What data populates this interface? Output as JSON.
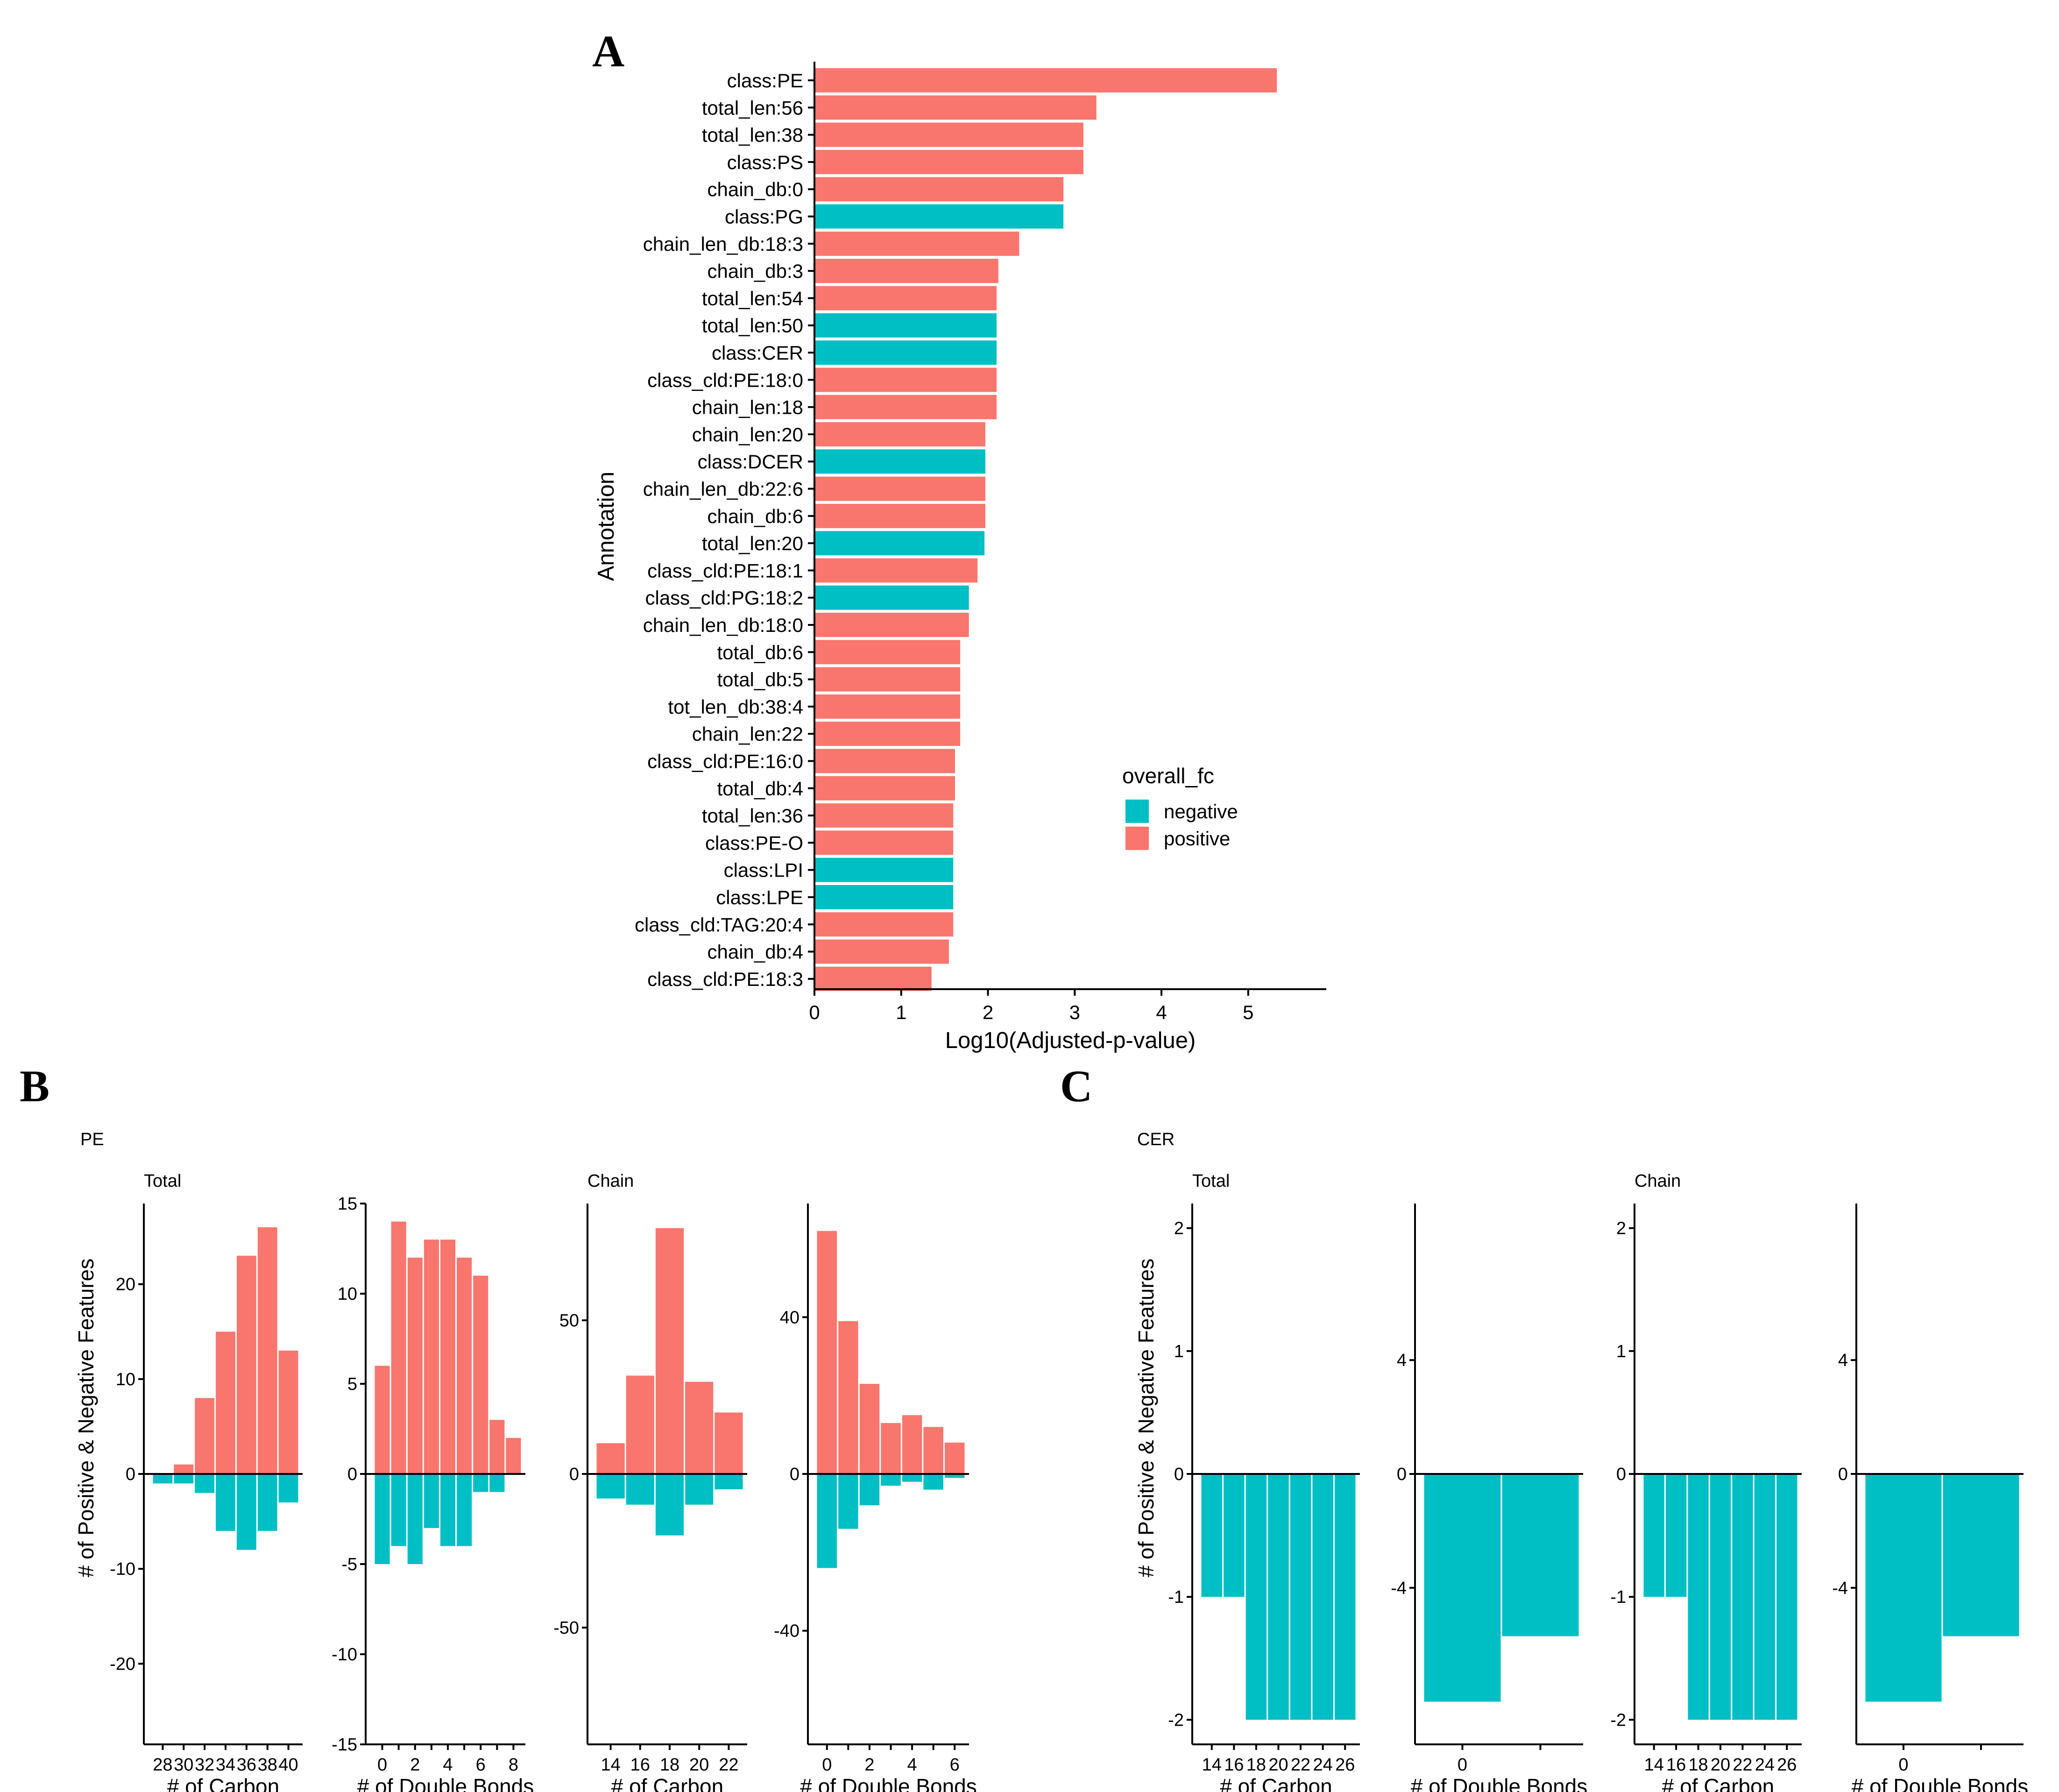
{
  "colors": {
    "positive": "#F8766D",
    "negative": "#00BFC4",
    "axis": "#000000"
  },
  "panels": {
    "a": "A",
    "b": "B",
    "c": "C"
  },
  "chart_data": [
    {
      "id": "A",
      "type": "bar",
      "orientation": "horizontal",
      "xlabel": "Log10(Adjusted-p-value)",
      "ylabel": "Annotation",
      "xlim": [
        0,
        5.9
      ],
      "xticks": [
        0,
        1,
        2,
        3,
        4,
        5
      ],
      "legend": {
        "title": "overall_fc",
        "entries": [
          "negative",
          "positive"
        ],
        "position": "right"
      },
      "categories": [
        "class:PE",
        "total_len:56",
        "total_len:38",
        "class:PS",
        "chain_db:0",
        "class:PG",
        "chain_len_db:18:3",
        "chain_db:3",
        "total_len:54",
        "total_len:50",
        "class:CER",
        "class_cld:PE:18:0",
        "chain_len:18",
        "chain_len:20",
        "class:DCER",
        "chain_len_db:22:6",
        "chain_db:6",
        "total_len:20",
        "class_cld:PE:18:1",
        "class_cld:PG:18:2",
        "chain_len_db:18:0",
        "total_db:6",
        "total_db:5",
        "tot_len_db:38:4",
        "chain_len:22",
        "class_cld:PE:16:0",
        "total_db:4",
        "total_len:36",
        "class:PE-O",
        "class:LPI",
        "class:LPE",
        "class_cld:TAG:20:4",
        "chain_db:4",
        "class_cld:PE:18:3"
      ],
      "values": [
        5.33,
        3.25,
        3.1,
        3.1,
        2.87,
        2.87,
        2.36,
        2.12,
        2.1,
        2.1,
        2.1,
        2.1,
        2.1,
        1.97,
        1.97,
        1.97,
        1.97,
        1.96,
        1.88,
        1.78,
        1.78,
        1.68,
        1.68,
        1.68,
        1.68,
        1.62,
        1.62,
        1.6,
        1.6,
        1.6,
        1.6,
        1.6,
        1.55,
        1.35
      ],
      "fc": [
        "positive",
        "positive",
        "positive",
        "positive",
        "positive",
        "negative",
        "positive",
        "positive",
        "positive",
        "negative",
        "negative",
        "positive",
        "positive",
        "positive",
        "negative",
        "positive",
        "positive",
        "negative",
        "positive",
        "negative",
        "positive",
        "positive",
        "positive",
        "positive",
        "positive",
        "positive",
        "positive",
        "positive",
        "positive",
        "negative",
        "negative",
        "positive",
        "positive",
        "positive"
      ]
    },
    {
      "id": "B",
      "group_title": "PE",
      "ylabel": "# of Positive & Negative Features",
      "facets": [
        {
          "strip": "Total",
          "type": "bar",
          "xlabel": "# of Carbon",
          "ylim": [
            -28.5,
            28.5
          ],
          "yticks": [
            -20,
            -10,
            0,
            10,
            20
          ],
          "categories": [
            "28",
            "30",
            "32",
            "34",
            "36",
            "38",
            "40"
          ],
          "positive": [
            0,
            1,
            8,
            15,
            23,
            26,
            13
          ],
          "negative": [
            -1,
            -1,
            -2,
            -6,
            -8,
            -6,
            -3
          ]
        },
        {
          "strip": "",
          "type": "bar",
          "xlabel": "# of Double Bonds",
          "ylim": [
            -15,
            15
          ],
          "yticks": [
            -15,
            -10,
            -5,
            0,
            5,
            10,
            15
          ],
          "categories": [
            "0",
            "1",
            "2",
            "3",
            "4",
            "5",
            "6",
            "7",
            "8"
          ],
          "tick_labels": [
            "0",
            "",
            "2",
            "",
            "4",
            "",
            "6",
            "",
            "8"
          ],
          "positive": [
            6,
            14,
            12,
            13,
            13,
            12,
            11,
            3,
            2
          ],
          "negative": [
            -5,
            -4,
            -5,
            -3,
            -4,
            -4,
            -1,
            -1,
            0
          ]
        },
        {
          "strip": "Chain",
          "type": "bar",
          "xlabel": "# of Carbon",
          "ylim": [
            -88,
            88
          ],
          "yticks": [
            -50,
            0,
            50
          ],
          "categories": [
            "14",
            "16",
            "18",
            "20",
            "22"
          ],
          "positive": [
            10,
            32,
            80,
            30,
            20
          ],
          "negative": [
            -8,
            -10,
            -20,
            -10,
            -5
          ]
        },
        {
          "strip": "",
          "type": "bar",
          "xlabel": "# of Double Bonds",
          "ylim": [
            -69,
            69
          ],
          "yticks": [
            -40,
            0,
            40
          ],
          "categories": [
            "0",
            "1",
            "2",
            "3",
            "4",
            "5",
            "6"
          ],
          "tick_labels": [
            "0",
            "",
            "2",
            "",
            "4",
            "",
            "6"
          ],
          "positive": [
            62,
            39,
            23,
            13,
            15,
            12,
            8
          ],
          "negative": [
            -24,
            -14,
            -8,
            -3,
            -2,
            -4,
            -1
          ]
        }
      ]
    },
    {
      "id": "C",
      "group_title": "CER",
      "ylabel": "# of Positive & Negative Features",
      "facets": [
        {
          "strip": "Total",
          "type": "bar",
          "xlabel": "# of Carbon",
          "ylim": [
            -2.2,
            2.2
          ],
          "yticks": [
            -2,
            -1,
            0,
            1,
            2
          ],
          "categories": [
            "14",
            "16",
            "18",
            "20",
            "22",
            "24",
            "26"
          ],
          "positive": [
            0,
            0,
            0,
            0,
            0,
            0,
            0
          ],
          "negative": [
            -1,
            -1,
            -2,
            -2,
            -2,
            -2,
            -2
          ]
        },
        {
          "strip": "",
          "type": "bar",
          "xlabel": "# of Double Bonds",
          "ylim": [
            -9.5,
            9.5
          ],
          "yticks": [
            -4,
            0,
            4
          ],
          "categories": [
            "0",
            "1"
          ],
          "tick_labels": [
            "0",
            ""
          ],
          "positive": [
            0,
            0
          ],
          "negative": [
            -8,
            -5.7
          ]
        },
        {
          "strip": "Chain",
          "type": "bar",
          "xlabel": "# of Carbon",
          "ylim": [
            -2.2,
            2.2
          ],
          "yticks": [
            -2,
            -1,
            0,
            1,
            2
          ],
          "categories": [
            "14",
            "16",
            "18",
            "20",
            "22",
            "24",
            "26"
          ],
          "positive": [
            0,
            0,
            0,
            0,
            0,
            0,
            0
          ],
          "negative": [
            -1,
            -1,
            -2,
            -2,
            -2,
            -2,
            -2
          ]
        },
        {
          "strip": "",
          "type": "bar",
          "xlabel": "# of Double Bonds",
          "ylim": [
            -9.5,
            9.5
          ],
          "yticks": [
            -4,
            0,
            4
          ],
          "categories": [
            "0",
            "1"
          ],
          "tick_labels": [
            "0",
            ""
          ],
          "positive": [
            0,
            0
          ],
          "negative": [
            -8,
            -5.7
          ]
        }
      ]
    }
  ]
}
